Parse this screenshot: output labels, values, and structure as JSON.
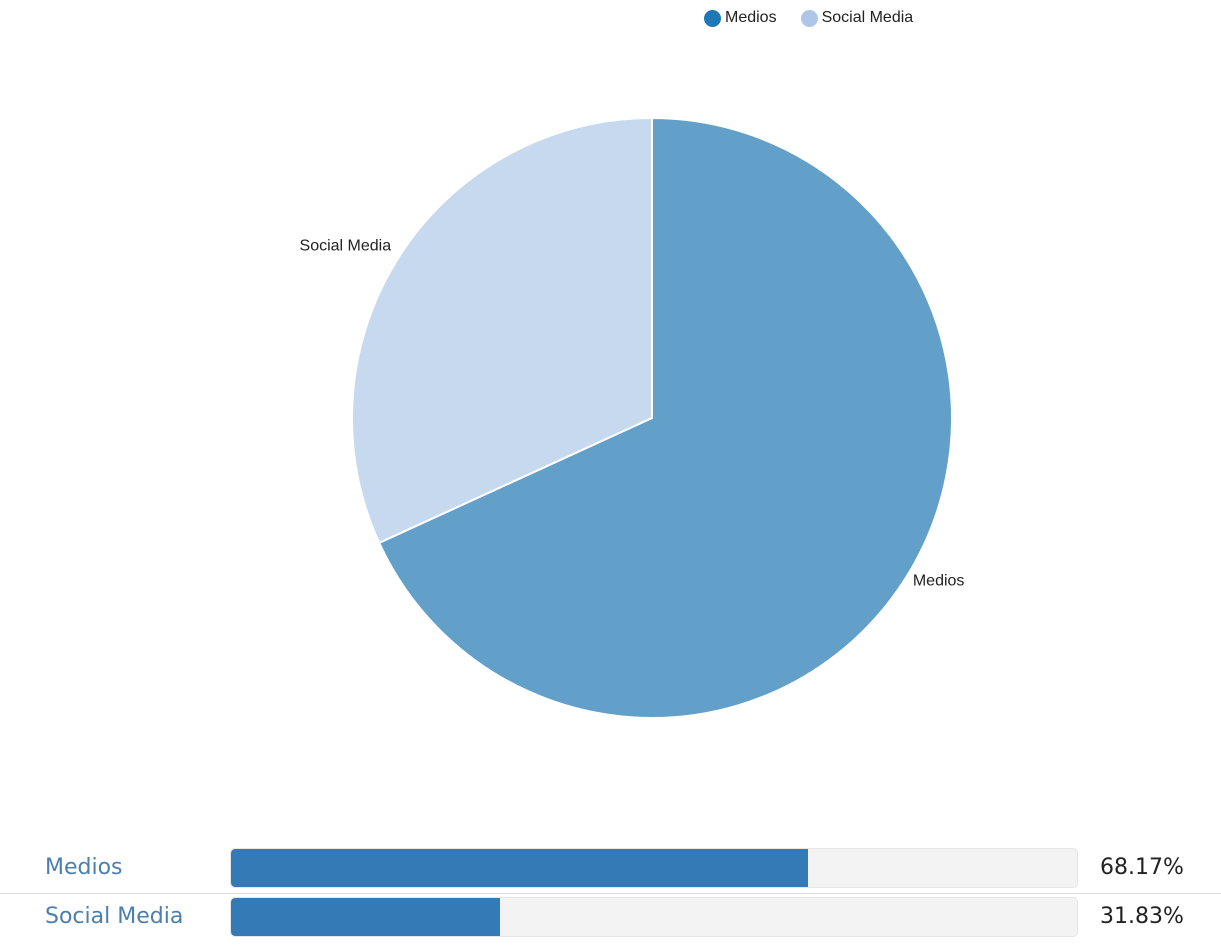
{
  "chart_data": {
    "type": "pie",
    "legend_position": "top-right",
    "series": [
      {
        "name": "Medios",
        "value": 68.17,
        "color": "#62a0ca",
        "legend_color": "#1f77b4"
      },
      {
        "name": "Social Media",
        "value": 31.83,
        "color": "#c6d9ee",
        "legend_color": "#aec7e8"
      }
    ]
  },
  "bars": [
    {
      "label": "Medios",
      "percent_text": "68.17%",
      "fraction": 0.6817,
      "color": "#337ab7"
    },
    {
      "label": "Social Media",
      "percent_text": "31.83%",
      "fraction": 0.3183,
      "color": "#337ab7"
    }
  ]
}
